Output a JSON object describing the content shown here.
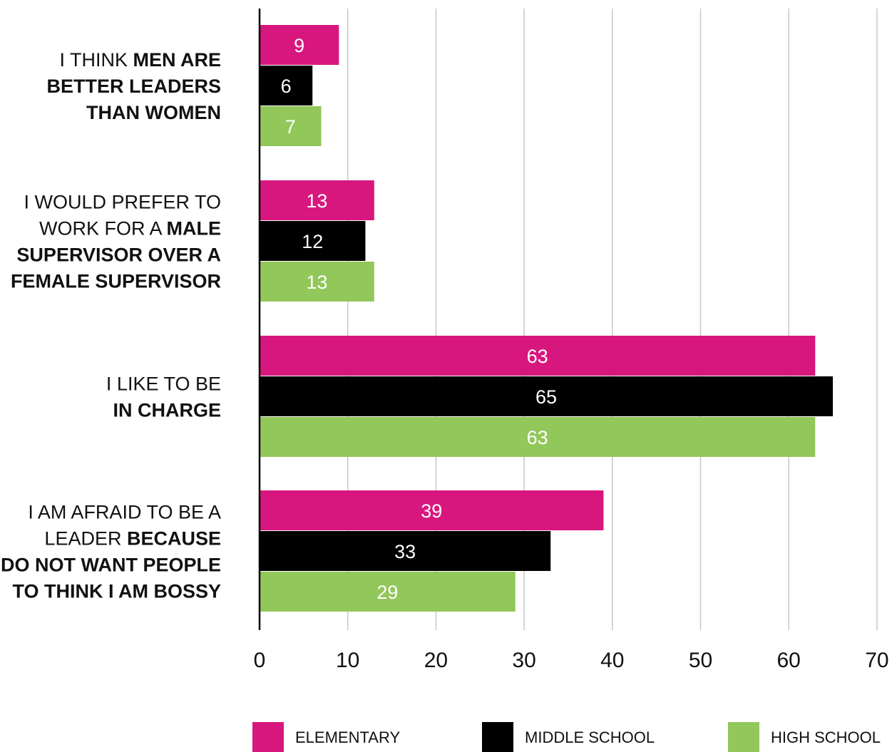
{
  "chart_data": {
    "type": "bar",
    "orientation": "horizontal",
    "categories": [
      [
        {
          "text": "I THINK ",
          "bold": false
        },
        {
          "text": "MEN ARE",
          "bold": true
        },
        {
          "text": "\nBETTER LEADERS\nTHAN WOMEN",
          "bold": true
        }
      ],
      [
        {
          "text": "I WOULD PREFER TO\nWORK FOR A ",
          "bold": false
        },
        {
          "text": "MALE\nSUPERVISOR OVER A\nFEMALE SUPERVISOR",
          "bold": true
        }
      ],
      [
        {
          "text": "I LIKE TO BE\n",
          "bold": false
        },
        {
          "text": "IN CHARGE",
          "bold": true
        }
      ],
      [
        {
          "text": "I AM AFRAID TO BE A\nLEADER ",
          "bold": false
        },
        {
          "text": "BECAUSE\nI DO NOT WANT PEOPLE\nTO THINK I AM BOSSY",
          "bold": true
        }
      ]
    ],
    "series": [
      {
        "name": "ELEMENTARY",
        "color": "#d8177e",
        "values": [
          9,
          13,
          63,
          39
        ]
      },
      {
        "name": "MIDDLE SCHOOL",
        "color": "#000000",
        "values": [
          6,
          12,
          65,
          33
        ]
      },
      {
        "name": "HIGH SCHOOL",
        "color": "#92c75a",
        "values": [
          7,
          13,
          63,
          29
        ]
      }
    ],
    "xlim": [
      0,
      70
    ],
    "xticks": [
      "0",
      "10",
      "20",
      "30",
      "40",
      "50",
      "60",
      "70"
    ],
    "grid": true,
    "legend_position": "bottom",
    "title": "",
    "xlabel": "",
    "ylabel": ""
  }
}
